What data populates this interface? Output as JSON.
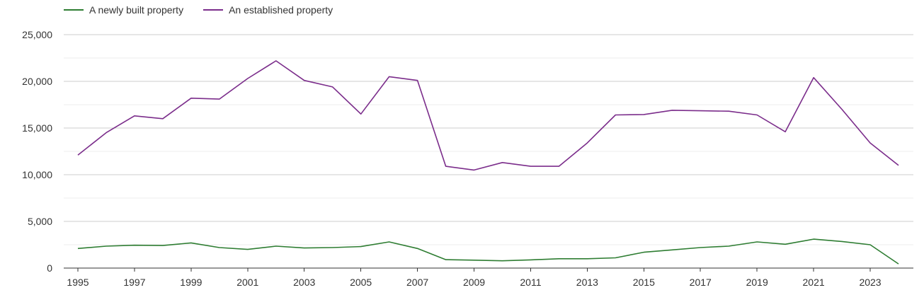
{
  "chart_data": {
    "type": "line",
    "title": "",
    "xlabel": "",
    "ylabel": "",
    "x": [
      1995,
      1996,
      1997,
      1998,
      1999,
      2000,
      2001,
      2002,
      2003,
      2004,
      2005,
      2006,
      2007,
      2008,
      2009,
      2010,
      2011,
      2012,
      2013,
      2014,
      2015,
      2016,
      2017,
      2018,
      2019,
      2020,
      2021,
      2022,
      2023,
      2024
    ],
    "xlim": [
      1995,
      2024
    ],
    "ylim": [
      0,
      25000
    ],
    "y_ticks": [
      0,
      5000,
      10000,
      15000,
      20000,
      25000
    ],
    "y_tick_labels": [
      "0",
      "5,000",
      "10,000",
      "15,000",
      "20,000",
      "25,000"
    ],
    "x_ticks": [
      1995,
      1997,
      1999,
      2001,
      2003,
      2005,
      2007,
      2009,
      2011,
      2013,
      2015,
      2017,
      2019,
      2021,
      2023
    ],
    "x_tick_labels": [
      "1995",
      "1997",
      "1999",
      "2001",
      "2003",
      "2005",
      "2007",
      "2009",
      "2011",
      "2013",
      "2015",
      "2017",
      "2019",
      "2021",
      "2023"
    ],
    "grid": true,
    "legend_position": "top-left",
    "series": [
      {
        "name": "A newly built property",
        "color": "#2e7d32",
        "values": [
          2100,
          2350,
          2450,
          2420,
          2700,
          2200,
          2000,
          2350,
          2150,
          2200,
          2300,
          2800,
          2100,
          900,
          850,
          780,
          880,
          1000,
          1000,
          1100,
          1700,
          1950,
          2200,
          2350,
          2800,
          2550,
          3100,
          2850,
          2500,
          450
        ]
      },
      {
        "name": "An established property",
        "color": "#7b2d8b",
        "values": [
          12100,
          14500,
          16300,
          16000,
          18200,
          18100,
          20300,
          22200,
          20100,
          19400,
          16500,
          20500,
          20100,
          10900,
          10500,
          11300,
          10900,
          10900,
          13400,
          16400,
          16450,
          16900,
          16850,
          16800,
          16400,
          14600,
          20400,
          17000,
          13400,
          11000
        ]
      }
    ]
  }
}
